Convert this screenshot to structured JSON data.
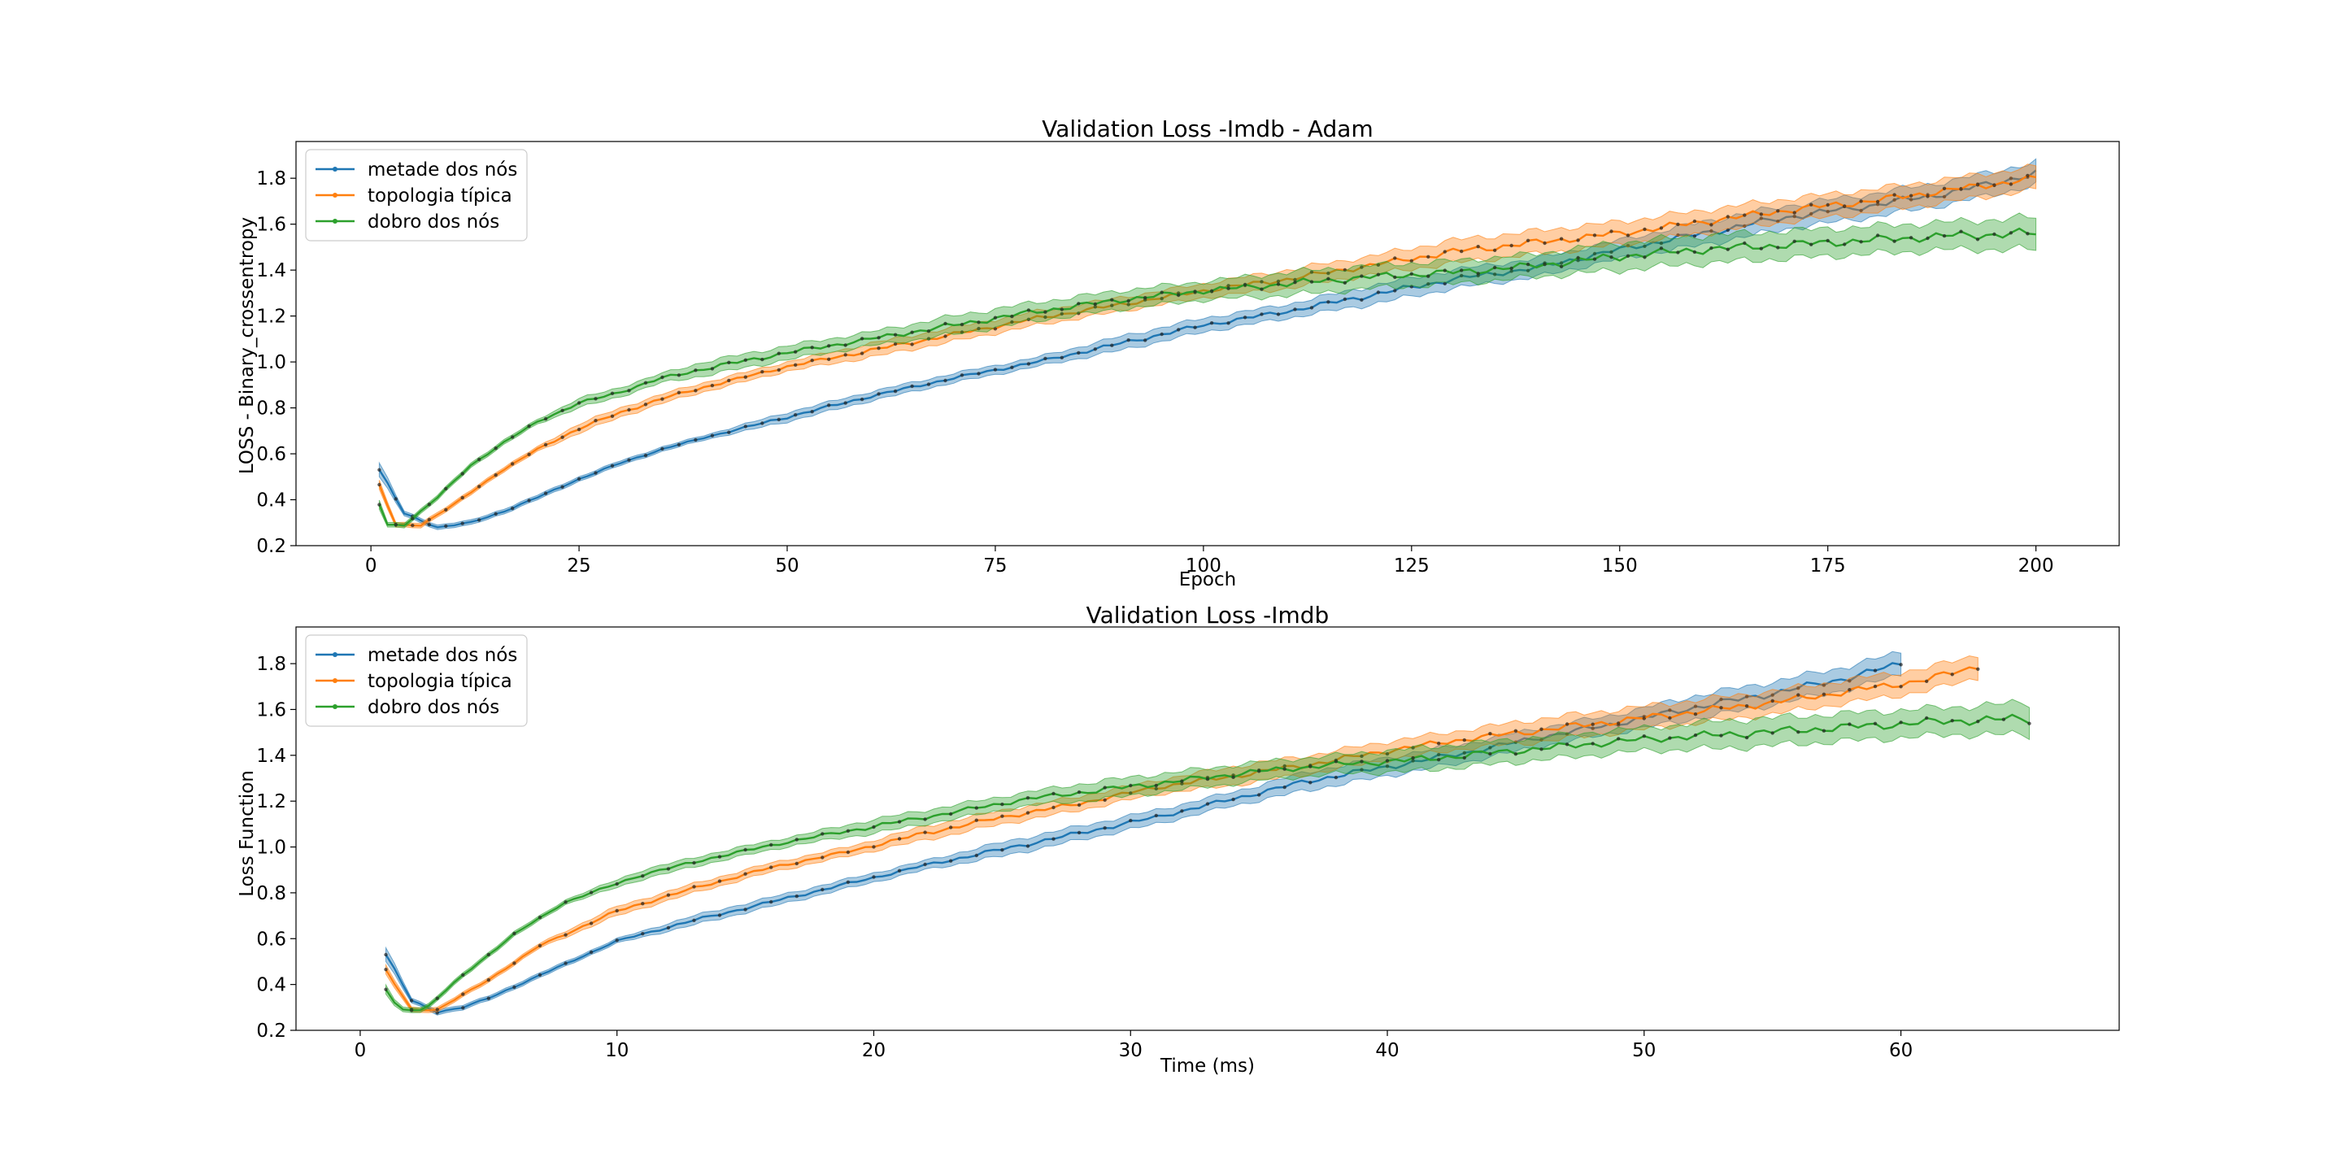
{
  "chart_data": [
    {
      "type": "line",
      "title": "Validation Loss -Imdb - Adam",
      "xlabel": "Epoch",
      "ylabel": "LOSS - Binary_crossentropy",
      "xlim": [
        -9,
        210
      ],
      "ylim": [
        0.2,
        1.96
      ],
      "xticks": [
        0,
        25,
        50,
        75,
        100,
        125,
        150,
        175,
        200
      ],
      "yticks": [
        0.2,
        0.4,
        0.6,
        0.8,
        1.0,
        1.2,
        1.4,
        1.6,
        1.8
      ],
      "ytick_labels": [
        "0.2",
        "0.4",
        "0.6",
        "0.8",
        "1.0",
        "1.2",
        "1.4",
        "1.6",
        "1.8"
      ],
      "legend_position": "upper-left",
      "band": "shaded range around each line",
      "series": [
        {
          "name": "metade dos nós",
          "color": "#1f77b4",
          "x": [
            1,
            4,
            8,
            12,
            16,
            20,
            25,
            30,
            35,
            40,
            50,
            60,
            70,
            80,
            90,
            100,
            110,
            120,
            130,
            140,
            150,
            160,
            170,
            180,
            190,
            200
          ],
          "y": [
            0.53,
            0.34,
            0.28,
            0.3,
            0.35,
            0.41,
            0.49,
            0.56,
            0.62,
            0.67,
            0.76,
            0.85,
            0.93,
            1.0,
            1.08,
            1.16,
            1.22,
            1.29,
            1.36,
            1.41,
            1.49,
            1.56,
            1.63,
            1.68,
            1.74,
            1.82
          ],
          "band_halfwidth": [
            0.03,
            0.01,
            0.01,
            0.01,
            0.01,
            0.01,
            0.01,
            0.01,
            0.01,
            0.01,
            0.02,
            0.02,
            0.02,
            0.02,
            0.03,
            0.03,
            0.03,
            0.04,
            0.04,
            0.04,
            0.04,
            0.05,
            0.05,
            0.05,
            0.05,
            0.05
          ]
        },
        {
          "name": "topologia típica",
          "color": "#ff7f0e",
          "x": [
            1,
            3,
            6,
            10,
            15,
            20,
            25,
            30,
            35,
            40,
            50,
            60,
            70,
            80,
            90,
            100,
            110,
            120,
            130,
            140,
            150,
            160,
            170,
            180,
            190,
            200
          ],
          "y": [
            0.46,
            0.29,
            0.29,
            0.38,
            0.51,
            0.62,
            0.71,
            0.78,
            0.84,
            0.89,
            0.98,
            1.05,
            1.12,
            1.19,
            1.25,
            1.31,
            1.36,
            1.42,
            1.48,
            1.52,
            1.56,
            1.61,
            1.66,
            1.7,
            1.75,
            1.8
          ],
          "band_halfwidth": [
            0.02,
            0.01,
            0.01,
            0.01,
            0.01,
            0.01,
            0.02,
            0.02,
            0.02,
            0.02,
            0.02,
            0.03,
            0.03,
            0.03,
            0.03,
            0.03,
            0.04,
            0.04,
            0.05,
            0.05,
            0.05,
            0.05,
            0.05,
            0.05,
            0.05,
            0.05
          ]
        },
        {
          "name": "dobro dos nós",
          "color": "#2ca02c",
          "x": [
            1,
            2,
            4,
            8,
            12,
            16,
            20,
            25,
            30,
            35,
            40,
            50,
            60,
            70,
            80,
            90,
            100,
            110,
            120,
            130,
            140,
            150,
            160,
            170,
            180,
            190,
            200
          ],
          "y": [
            0.38,
            0.29,
            0.29,
            0.41,
            0.55,
            0.65,
            0.74,
            0.82,
            0.87,
            0.93,
            0.97,
            1.04,
            1.1,
            1.16,
            1.22,
            1.27,
            1.31,
            1.34,
            1.37,
            1.39,
            1.42,
            1.46,
            1.49,
            1.51,
            1.53,
            1.55,
            1.56
          ],
          "band_halfwidth": [
            0.02,
            0.01,
            0.01,
            0.01,
            0.01,
            0.01,
            0.01,
            0.02,
            0.02,
            0.02,
            0.03,
            0.03,
            0.03,
            0.04,
            0.04,
            0.04,
            0.04,
            0.05,
            0.05,
            0.05,
            0.05,
            0.06,
            0.06,
            0.06,
            0.06,
            0.06,
            0.07
          ]
        }
      ]
    },
    {
      "type": "line",
      "title": "Validation Loss -Imdb",
      "xlabel": "Time (ms)",
      "ylabel": "Loss Function",
      "xlim": [
        -2.5,
        68.5
      ],
      "ylim": [
        0.2,
        1.96
      ],
      "xticks": [
        0,
        10,
        20,
        30,
        40,
        50,
        60
      ],
      "yticks": [
        0.2,
        0.4,
        0.6,
        0.8,
        1.0,
        1.2,
        1.4,
        1.6,
        1.8
      ],
      "ytick_labels": [
        "0.2",
        "0.4",
        "0.6",
        "0.8",
        "1.0",
        "1.2",
        "1.4",
        "1.6",
        "1.8"
      ],
      "legend_position": "upper-left",
      "band": "shaded range around each line",
      "series": [
        {
          "name": "metade dos nós",
          "color": "#1f77b4",
          "x": [
            1,
            2,
            3,
            4,
            5,
            7,
            10,
            13,
            16,
            19,
            22,
            25,
            28,
            31,
            34,
            37,
            40,
            43,
            46,
            49,
            52,
            55,
            58,
            60
          ],
          "y": [
            0.53,
            0.33,
            0.28,
            0.3,
            0.34,
            0.44,
            0.59,
            0.68,
            0.76,
            0.84,
            0.92,
            0.99,
            1.06,
            1.13,
            1.21,
            1.29,
            1.35,
            1.41,
            1.48,
            1.54,
            1.61,
            1.67,
            1.74,
            1.8
          ],
          "band_halfwidth": [
            0.03,
            0.01,
            0.01,
            0.01,
            0.01,
            0.01,
            0.01,
            0.02,
            0.02,
            0.02,
            0.02,
            0.03,
            0.03,
            0.03,
            0.03,
            0.04,
            0.04,
            0.04,
            0.04,
            0.04,
            0.05,
            0.05,
            0.05,
            0.05
          ]
        },
        {
          "name": "topologia típica",
          "color": "#ff7f0e",
          "x": [
            1,
            2,
            3,
            5,
            7,
            10,
            13,
            16,
            19,
            22,
            25,
            28,
            31,
            34,
            37,
            40,
            43,
            46,
            49,
            52,
            55,
            58,
            61,
            63
          ],
          "y": [
            0.46,
            0.29,
            0.29,
            0.42,
            0.57,
            0.72,
            0.82,
            0.91,
            0.98,
            1.06,
            1.13,
            1.19,
            1.26,
            1.31,
            1.36,
            1.42,
            1.47,
            1.51,
            1.55,
            1.59,
            1.63,
            1.68,
            1.73,
            1.79
          ],
          "band_halfwidth": [
            0.02,
            0.01,
            0.01,
            0.01,
            0.01,
            0.02,
            0.02,
            0.02,
            0.02,
            0.03,
            0.03,
            0.03,
            0.03,
            0.04,
            0.04,
            0.04,
            0.04,
            0.05,
            0.05,
            0.05,
            0.05,
            0.05,
            0.05,
            0.05
          ]
        },
        {
          "name": "dobro dos nós",
          "color": "#2ca02c",
          "x": [
            1,
            1.5,
            2.5,
            4,
            6,
            8,
            11,
            14,
            17,
            20,
            23,
            26,
            29,
            32,
            35,
            38,
            41,
            44,
            47,
            50,
            53,
            56,
            59,
            62,
            65
          ],
          "y": [
            0.38,
            0.29,
            0.29,
            0.44,
            0.62,
            0.76,
            0.88,
            0.96,
            1.03,
            1.09,
            1.15,
            1.21,
            1.25,
            1.29,
            1.33,
            1.36,
            1.38,
            1.41,
            1.44,
            1.47,
            1.49,
            1.51,
            1.53,
            1.55,
            1.56
          ],
          "band_halfwidth": [
            0.02,
            0.01,
            0.01,
            0.01,
            0.01,
            0.01,
            0.02,
            0.02,
            0.02,
            0.03,
            0.03,
            0.03,
            0.04,
            0.04,
            0.04,
            0.04,
            0.05,
            0.05,
            0.05,
            0.05,
            0.06,
            0.06,
            0.06,
            0.06,
            0.07
          ]
        }
      ]
    }
  ]
}
